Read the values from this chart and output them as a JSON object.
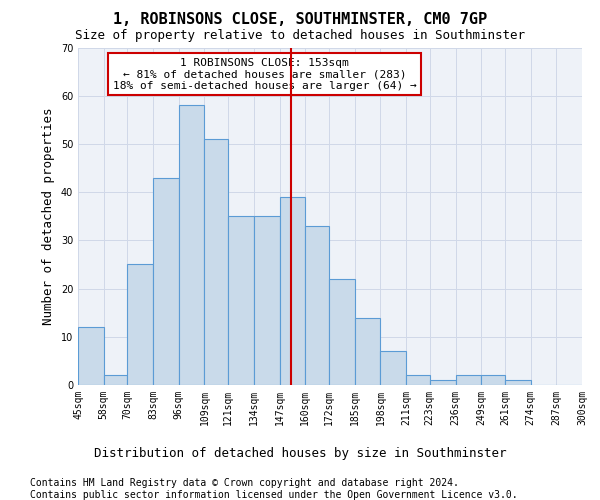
{
  "title": "1, ROBINSONS CLOSE, SOUTHMINSTER, CM0 7GP",
  "subtitle": "Size of property relative to detached houses in Southminster",
  "xlabel": "Distribution of detached houses by size in Southminster",
  "ylabel": "Number of detached properties",
  "footer_line1": "Contains HM Land Registry data © Crown copyright and database right 2024.",
  "footer_line2": "Contains public sector information licensed under the Open Government Licence v3.0.",
  "annotation_line1": "1 ROBINSONS CLOSE: 153sqm",
  "annotation_line2": "← 81% of detached houses are smaller (283)",
  "annotation_line3": "18% of semi-detached houses are larger (64) →",
  "property_size": 153,
  "bar_edges": [
    45,
    58,
    70,
    83,
    96,
    109,
    121,
    134,
    147,
    160,
    172,
    185,
    198,
    211,
    223,
    236,
    249,
    261,
    274,
    287,
    300
  ],
  "bar_values": [
    12,
    2,
    25,
    43,
    58,
    51,
    35,
    35,
    39,
    33,
    22,
    14,
    7,
    2,
    1,
    2,
    2,
    1,
    0,
    0
  ],
  "bar_color": "#c9daea",
  "bar_edge_color": "#5b9bd5",
  "vline_color": "#cc0000",
  "vline_x": 153,
  "annotation_box_color": "#cc0000",
  "grid_color": "#d0d8e8",
  "background_color": "#eef2f8",
  "ylim": [
    0,
    70
  ],
  "title_fontsize": 11,
  "subtitle_fontsize": 9,
  "ylabel_fontsize": 9,
  "xlabel_fontsize": 9,
  "tick_fontsize": 7,
  "annotation_fontsize": 8,
  "footer_fontsize": 7
}
